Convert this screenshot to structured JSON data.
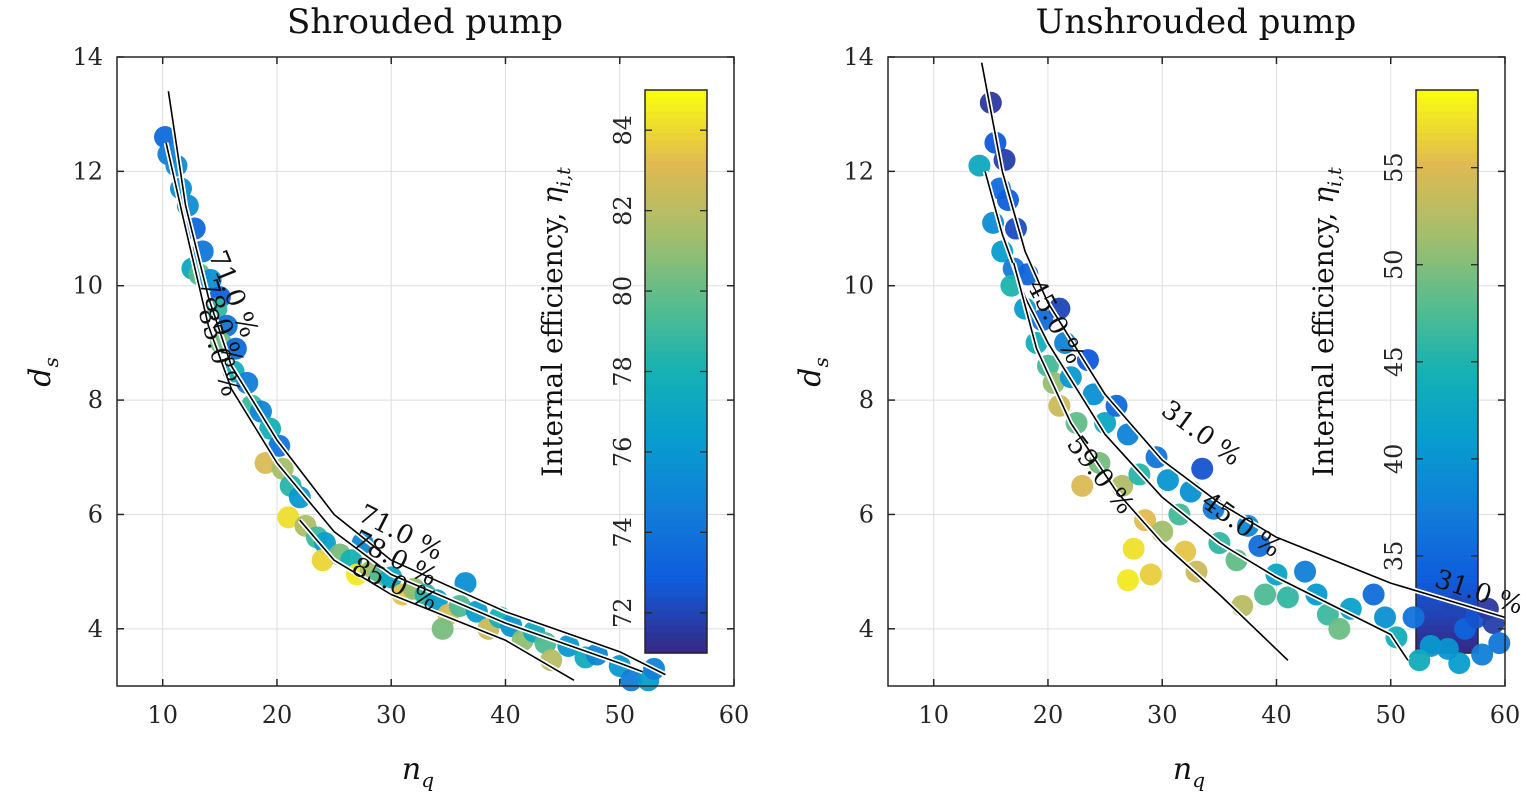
{
  "chart_data": [
    {
      "type": "scatter",
      "title": "Shrouded pump",
      "xlabel": "n",
      "xlabel_sub": "q",
      "ylabel": "d",
      "ylabel_sub": "s",
      "xlim": [
        6,
        60
      ],
      "ylim": [
        3,
        14
      ],
      "xticks": [
        "10",
        "20",
        "30",
        "40",
        "50",
        "60"
      ],
      "yticks": [
        "4",
        "6",
        "8",
        "10",
        "12",
        "14"
      ],
      "grid": true,
      "colorbar": {
        "label": "Internal efficiency, ",
        "label_symbol": "η",
        "label_sub": "i,t",
        "range": [
          71,
          85
        ],
        "ticks": [
          "72",
          "74",
          "76",
          "78",
          "80",
          "82",
          "84"
        ],
        "colormap": "parula"
      },
      "contours": [
        {
          "label": "71.0 %",
          "points": [
            [
              10.5,
              13.4
            ],
            [
              12,
              11.4
            ],
            [
              14,
              9.8
            ],
            [
              16,
              8.6
            ],
            [
              20,
              7.3
            ],
            [
              25,
              6.0
            ],
            [
              30,
              5.2
            ],
            [
              40,
              4.3
            ],
            [
              50,
              3.6
            ],
            [
              54,
              3.2
            ]
          ]
        },
        {
          "label": "78.0 %",
          "points": [
            [
              10.3,
              12.5
            ],
            [
              12,
              11.0
            ],
            [
              14,
              9.3
            ],
            [
              16,
              8.2
            ],
            [
              20,
              6.9
            ],
            [
              25,
              5.7
            ],
            [
              30,
              4.95
            ],
            [
              40,
              4.1
            ],
            [
              50,
              3.4
            ],
            [
              52,
              3.25
            ]
          ]
        },
        {
          "label": "85.0 %",
          "points": [
            [
              22,
              5.9
            ],
            [
              25,
              5.2
            ],
            [
              30,
              4.6
            ],
            [
              35,
              4.2
            ],
            [
              40,
              3.8
            ],
            [
              46,
              3.1
            ]
          ]
        }
      ],
      "contour_labels": [
        {
          "text": "71.0 %",
          "x": 15.5,
          "y": 9.8,
          "angle": 68
        },
        {
          "text": "78.0 %",
          "x": 14.4,
          "y": 9.3,
          "angle": 72
        },
        {
          "text": "85.0 %",
          "x": 14.2,
          "y": 8.8,
          "angle": 74
        },
        {
          "text": "71.0 %",
          "x": 30.5,
          "y": 5.55,
          "angle": 27
        },
        {
          "text": "78.0 %",
          "x": 30.0,
          "y": 5.1,
          "angle": 27
        },
        {
          "text": "85.0 %",
          "x": 30.0,
          "y": 4.65,
          "angle": 25
        }
      ],
      "points": [
        [
          10.2,
          12.6,
          73.5
        ],
        [
          10.5,
          12.3,
          74.5
        ],
        [
          11.2,
          12.1,
          75.2
        ],
        [
          11.6,
          11.7,
          75.6
        ],
        [
          12.2,
          11.4,
          75.4
        ],
        [
          12.8,
          11.0,
          73.4
        ],
        [
          13.5,
          10.6,
          74.2
        ],
        [
          12.6,
          10.3,
          77.2
        ],
        [
          13.2,
          10.2,
          79.6
        ],
        [
          14.2,
          10.1,
          75.5
        ],
        [
          15.0,
          9.8,
          73.0
        ],
        [
          14.7,
          9.6,
          78.8
        ],
        [
          15.6,
          9.3,
          74.1
        ],
        [
          15.1,
          9.0,
          80.2
        ],
        [
          16.4,
          8.9,
          73.5
        ],
        [
          16.2,
          8.5,
          77.8
        ],
        [
          17.4,
          8.3,
          74.5
        ],
        [
          17.8,
          7.9,
          79.0
        ],
        [
          18.6,
          7.8,
          75.0
        ],
        [
          19.4,
          7.5,
          77.8
        ],
        [
          20.2,
          7.2,
          74.0
        ],
        [
          19.0,
          6.9,
          83.0
        ],
        [
          20.5,
          6.8,
          81.5
        ],
        [
          21.2,
          6.5,
          78.5
        ],
        [
          22.0,
          6.3,
          76.0
        ],
        [
          21.0,
          5.95,
          84.2
        ],
        [
          22.5,
          5.8,
          81.8
        ],
        [
          23.5,
          5.6,
          79.0
        ],
        [
          24.2,
          5.5,
          76.5
        ],
        [
          24.0,
          5.2,
          84.0
        ],
        [
          25.5,
          5.3,
          80.5
        ],
        [
          26.5,
          5.2,
          78.0
        ],
        [
          27.0,
          4.95,
          84.5
        ],
        [
          28.2,
          5.0,
          81.5
        ],
        [
          29.0,
          4.9,
          79.5
        ],
        [
          30.0,
          4.9,
          77.0
        ],
        [
          31.0,
          4.6,
          83.5
        ],
        [
          32.0,
          4.7,
          81.0
        ],
        [
          33.0,
          4.6,
          78.5
        ],
        [
          34.0,
          4.5,
          76.5
        ],
        [
          35.0,
          4.25,
          83.0
        ],
        [
          36.0,
          4.4,
          79.5
        ],
        [
          37.5,
          4.3,
          76.5
        ],
        [
          38.5,
          4.0,
          82.5
        ],
        [
          39.5,
          4.2,
          78.0
        ],
        [
          40.5,
          4.05,
          75.8
        ],
        [
          41.5,
          3.8,
          81.0
        ],
        [
          42.5,
          3.95,
          77.5
        ],
        [
          43.5,
          3.75,
          79.5
        ],
        [
          44.0,
          3.45,
          82.0
        ],
        [
          45.5,
          3.7,
          76.0
        ],
        [
          47.0,
          3.5,
          77.5
        ],
        [
          48.0,
          3.55,
          75.0
        ],
        [
          50.0,
          3.35,
          76.0
        ],
        [
          51.0,
          3.1,
          74.5
        ],
        [
          52.5,
          3.1,
          76.2
        ],
        [
          53.0,
          3.3,
          74.8
        ],
        [
          36.5,
          4.8,
          75.5
        ],
        [
          27.5,
          5.5,
          75.2
        ],
        [
          34.5,
          4.0,
          80.5
        ]
      ]
    },
    {
      "type": "scatter",
      "title": "Unshrouded pump",
      "xlabel": "n",
      "xlabel_sub": "q",
      "ylabel": "d",
      "ylabel_sub": "s",
      "xlim": [
        6,
        60
      ],
      "ylim": [
        3,
        14
      ],
      "xticks": [
        "10",
        "20",
        "30",
        "40",
        "50",
        "60"
      ],
      "yticks": [
        "4",
        "6",
        "8",
        "10",
        "12",
        "14"
      ],
      "grid": true,
      "colorbar": {
        "label": "Internal efficiency, ",
        "label_symbol": "η",
        "label_sub": "i,t",
        "range": [
          30,
          59
        ],
        "ticks": [
          "35",
          "40",
          "45",
          "50",
          "55"
        ],
        "colormap": "parula"
      },
      "contours": [
        {
          "label": "31.0 %",
          "points": [
            [
              14.2,
              13.9
            ],
            [
              16,
              12.0
            ],
            [
              18,
              10.6
            ],
            [
              20,
              9.7
            ],
            [
              25,
              8.1
            ],
            [
              30,
              6.95
            ],
            [
              35,
              6.2
            ],
            [
              40,
              5.6
            ],
            [
              50,
              4.8
            ],
            [
              60,
              4.2
            ]
          ]
        },
        {
          "label": "45.0 %",
          "points": [
            [
              14.5,
              12.0
            ],
            [
              16,
              10.9
            ],
            [
              18,
              9.8
            ],
            [
              20,
              9.0
            ],
            [
              25,
              7.4
            ],
            [
              30,
              6.3
            ],
            [
              35,
              5.5
            ],
            [
              40,
              4.9
            ],
            [
              50,
              3.9
            ],
            [
              51.5,
              3.45
            ]
          ]
        },
        {
          "label": "59.0 %",
          "points": [
            [
              17,
              10.4
            ],
            [
              19,
              8.9
            ],
            [
              22,
              7.6
            ],
            [
              26,
              6.4
            ],
            [
              30,
              5.5
            ],
            [
              35,
              4.6
            ],
            [
              41,
              3.45
            ]
          ]
        }
      ],
      "contour_labels": [
        {
          "text": "45.0 %",
          "x": 20.0,
          "y": 9.3,
          "angle": 62
        },
        {
          "text": "31.0 %",
          "x": 33.0,
          "y": 7.3,
          "angle": 36
        },
        {
          "text": "59.0 %",
          "x": 24.0,
          "y": 6.6,
          "angle": 52
        },
        {
          "text": "45.0 %",
          "x": 36.5,
          "y": 5.7,
          "angle": 36
        },
        {
          "text": "31.0 %",
          "x": 57.5,
          "y": 4.5,
          "angle": 18
        }
      ],
      "points": [
        [
          15.0,
          13.2,
          31.0
        ],
        [
          15.4,
          12.5,
          33.5
        ],
        [
          14.0,
          12.1,
          43.0
        ],
        [
          16.2,
          12.2,
          31.5
        ],
        [
          15.8,
          11.7,
          35.5
        ],
        [
          15.2,
          11.1,
          39.0
        ],
        [
          16.5,
          11.5,
          34.0
        ],
        [
          17.2,
          11.0,
          32.5
        ],
        [
          16.0,
          10.6,
          41.0
        ],
        [
          17.0,
          10.3,
          37.0
        ],
        [
          16.8,
          10.0,
          45.0
        ],
        [
          18.2,
          10.2,
          34.5
        ],
        [
          18.0,
          9.6,
          41.0
        ],
        [
          19.5,
          9.4,
          35.5
        ],
        [
          19.0,
          9.0,
          44.0
        ],
        [
          21.0,
          9.6,
          32.0
        ],
        [
          21.5,
          9.0,
          38.0
        ],
        [
          20.0,
          8.6,
          47.0
        ],
        [
          20.5,
          8.3,
          51.0
        ],
        [
          22.0,
          8.4,
          40.5
        ],
        [
          23.5,
          8.7,
          33.5
        ],
        [
          24.0,
          8.1,
          39.5
        ],
        [
          22.5,
          7.6,
          48.5
        ],
        [
          21.0,
          7.9,
          54.0
        ],
        [
          25.0,
          7.6,
          42.5
        ],
        [
          26.0,
          7.9,
          35.0
        ],
        [
          27.0,
          7.4,
          38.0
        ],
        [
          24.5,
          6.9,
          49.5
        ],
        [
          23.0,
          6.5,
          55.0
        ],
        [
          26.5,
          6.5,
          52.5
        ],
        [
          28.0,
          6.7,
          45.5
        ],
        [
          29.5,
          7.0,
          36.5
        ],
        [
          30.5,
          6.6,
          40.0
        ],
        [
          28.5,
          5.9,
          55.5
        ],
        [
          27.5,
          5.4,
          57.5
        ],
        [
          30.0,
          5.7,
          51.5
        ],
        [
          31.5,
          6.0,
          47.0
        ],
        [
          32.5,
          6.4,
          39.5
        ],
        [
          33.5,
          6.8,
          33.0
        ],
        [
          34.5,
          6.1,
          37.0
        ],
        [
          35.0,
          5.5,
          46.0
        ],
        [
          33.0,
          5.0,
          54.0
        ],
        [
          32.0,
          5.35,
          56.0
        ],
        [
          36.5,
          5.2,
          48.5
        ],
        [
          37.5,
          5.8,
          38.5
        ],
        [
          38.5,
          5.45,
          35.5
        ],
        [
          40.0,
          4.95,
          42.0
        ],
        [
          39.0,
          4.6,
          47.5
        ],
        [
          37.0,
          4.4,
          53.0
        ],
        [
          41.0,
          4.55,
          46.0
        ],
        [
          42.5,
          5.0,
          37.5
        ],
        [
          43.5,
          4.6,
          40.5
        ],
        [
          44.5,
          4.25,
          46.5
        ],
        [
          45.5,
          4.0,
          49.0
        ],
        [
          46.5,
          4.35,
          41.5
        ],
        [
          48.5,
          4.6,
          35.5
        ],
        [
          49.5,
          4.2,
          39.5
        ],
        [
          50.5,
          3.85,
          44.0
        ],
        [
          52.0,
          4.2,
          36.0
        ],
        [
          53.5,
          3.7,
          40.5
        ],
        [
          52.5,
          3.45,
          43.5
        ],
        [
          55.5,
          4.4,
          32.0
        ],
        [
          56.5,
          4.0,
          34.5
        ],
        [
          57.5,
          4.2,
          33.0
        ],
        [
          58.5,
          4.35,
          31.0
        ],
        [
          59.0,
          4.1,
          31.5
        ],
        [
          59.5,
          3.75,
          36.5
        ],
        [
          58.0,
          3.55,
          37.5
        ],
        [
          56.0,
          3.4,
          41.0
        ],
        [
          55.0,
          3.65,
          40.0
        ],
        [
          27.0,
          4.85,
          58.0
        ],
        [
          29.0,
          4.95,
          56.5
        ]
      ]
    }
  ]
}
